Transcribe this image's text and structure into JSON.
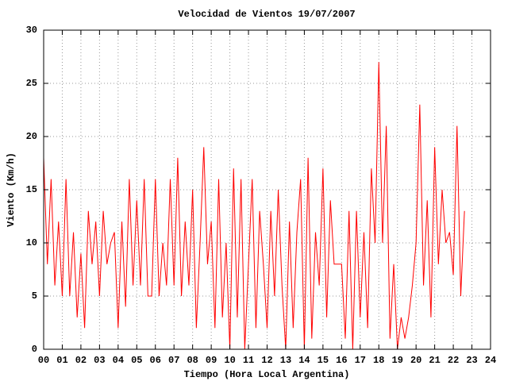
{
  "chart_data": {
    "type": "line",
    "title": "Velocidad de Vientos 19/07/2007",
    "xlabel": "Tiempo (Hora Local Argentina)",
    "ylabel": "Viento (Km/h)",
    "x": [
      0,
      0.2,
      0.4,
      0.6,
      0.8,
      1,
      1.2,
      1.4,
      1.6,
      1.8,
      2,
      2.2,
      2.4,
      2.6,
      2.8,
      3,
      3.2,
      3.4,
      3.6,
      3.8,
      4,
      4.2,
      4.4,
      4.6,
      4.8,
      5,
      5.2,
      5.4,
      5.6,
      5.8,
      6,
      6.2,
      6.4,
      6.6,
      6.8,
      7,
      7.2,
      7.4,
      7.6,
      7.8,
      8,
      8.2,
      8.4,
      8.6,
      8.8,
      9,
      9.2,
      9.4,
      9.6,
      9.8,
      10,
      10.2,
      10.4,
      10.6,
      10.8,
      11,
      11.2,
      11.4,
      11.6,
      11.8,
      12,
      12.2,
      12.4,
      12.6,
      12.8,
      13,
      13.2,
      13.4,
      13.6,
      13.8,
      14,
      14.2,
      14.4,
      14.6,
      14.8,
      15,
      15.2,
      15.4,
      15.6,
      15.8,
      16,
      16.2,
      16.4,
      16.6,
      16.8,
      17,
      17.2,
      17.4,
      17.6,
      17.8,
      18,
      18.2,
      18.4,
      18.6,
      18.8,
      19,
      19.2,
      19.4,
      19.6,
      19.8,
      20,
      20.2,
      20.4,
      20.6,
      20.8,
      21,
      21.2,
      21.4,
      21.6,
      21.8,
      22,
      22.2,
      22.4,
      22.6
    ],
    "series": [
      {
        "color": "#ff0000",
        "values": [
          18,
          8,
          16,
          6,
          12,
          5,
          16,
          5,
          11,
          3,
          9,
          2,
          13,
          8,
          12,
          5,
          13,
          8,
          10,
          11,
          2,
          12,
          4,
          16,
          6,
          14,
          6,
          16,
          5,
          5,
          16,
          5,
          10,
          6,
          16,
          6,
          18,
          5,
          12,
          6,
          15,
          2,
          10,
          19,
          8,
          12,
          2,
          16,
          3,
          10,
          0,
          17,
          3,
          16,
          0,
          8,
          16,
          2,
          13,
          8,
          2,
          13,
          5,
          15,
          6,
          0,
          12,
          2,
          11,
          16,
          0,
          18,
          1,
          11,
          6,
          17,
          3,
          14,
          8,
          8,
          8,
          1,
          13,
          0,
          13,
          3,
          11,
          2,
          17,
          10,
          27,
          10,
          21,
          1,
          8,
          0,
          3,
          1,
          3,
          6,
          10,
          23,
          6,
          14,
          3,
          19,
          8,
          15,
          10,
          11,
          7,
          21,
          5,
          13
        ]
      }
    ],
    "xlim": [
      0,
      24
    ],
    "ylim": [
      0,
      30
    ],
    "xticks": [
      {
        "value": 0,
        "label": "00"
      },
      {
        "value": 1,
        "label": "01"
      },
      {
        "value": 2,
        "label": "02"
      },
      {
        "value": 3,
        "label": "03"
      },
      {
        "value": 4,
        "label": "04"
      },
      {
        "value": 5,
        "label": "05"
      },
      {
        "value": 6,
        "label": "06"
      },
      {
        "value": 7,
        "label": "07"
      },
      {
        "value": 8,
        "label": "08"
      },
      {
        "value": 9,
        "label": "09"
      },
      10,
      11,
      12,
      13,
      14,
      15,
      16,
      17,
      18,
      19,
      20,
      21,
      22,
      23,
      24
    ],
    "yticks": [
      0,
      5,
      10,
      15,
      20,
      25,
      30
    ],
    "grid": true
  }
}
